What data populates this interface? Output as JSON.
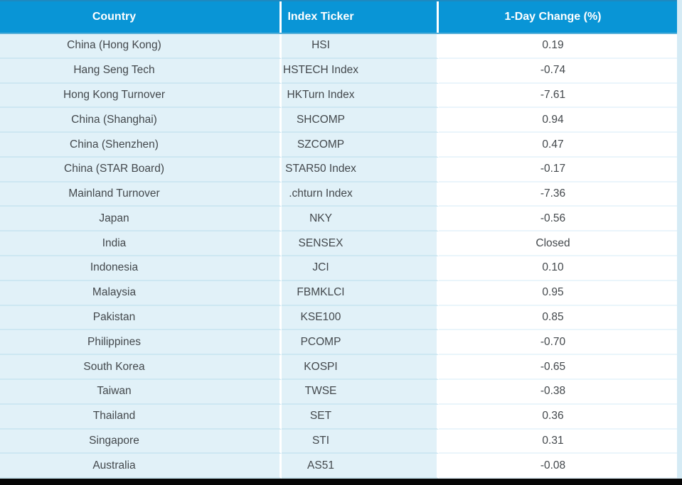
{
  "table": {
    "columns": [
      {
        "label": "Country"
      },
      {
        "label": "Index Ticker"
      },
      {
        "label": "1-Day Change (%)"
      }
    ],
    "rows": [
      {
        "country": "China (Hong Kong)",
        "ticker": "HSI",
        "change": "0.19"
      },
      {
        "country": "Hang Seng Tech",
        "ticker": "HSTECH Index",
        "change": "-0.74"
      },
      {
        "country": "Hong Kong Turnover",
        "ticker": "HKTurn Index",
        "change": "-7.61"
      },
      {
        "country": "China (Shanghai)",
        "ticker": "SHCOMP",
        "change": "0.94"
      },
      {
        "country": "China (Shenzhen)",
        "ticker": "SZCOMP",
        "change": "0.47"
      },
      {
        "country": "China (STAR Board)",
        "ticker": "STAR50 Index",
        "change": "-0.17"
      },
      {
        "country": "Mainland Turnover",
        "ticker": ".chturn Index",
        "change": "-7.36"
      },
      {
        "country": "Japan",
        "ticker": "NKY",
        "change": "-0.56"
      },
      {
        "country": "India",
        "ticker": "SENSEX",
        "change": "Closed"
      },
      {
        "country": "Indonesia",
        "ticker": "JCI",
        "change": "0.10"
      },
      {
        "country": "Malaysia",
        "ticker": "FBMKLCI",
        "change": "0.95"
      },
      {
        "country": "Pakistan",
        "ticker": "KSE100",
        "change": "0.85"
      },
      {
        "country": "Philippines",
        "ticker": "PCOMP",
        "change": "-0.70"
      },
      {
        "country": "South Korea",
        "ticker": "KOSPI",
        "change": "-0.65"
      },
      {
        "country": "Taiwan",
        "ticker": "TWSE",
        "change": "-0.38"
      },
      {
        "country": "Thailand",
        "ticker": "SET",
        "change": "0.36"
      },
      {
        "country": "Singapore",
        "ticker": "STI",
        "change": "0.31"
      },
      {
        "country": "Australia",
        "ticker": "AS51",
        "change": "-0.08"
      }
    ]
  },
  "colors": {
    "header_bg": "#0995d6",
    "header_text": "#ffffff",
    "row_bg": "#e1f1f8",
    "row_divider": "#cde7f2",
    "value_bg": "#ffffff",
    "value_divider": "#eaf5fb",
    "body_text": "#43484c",
    "right_strip": "#d5ebf5",
    "bottom_bar": "#060606"
  },
  "chart_data": {
    "type": "table",
    "title": "",
    "columns": [
      "Country",
      "Index Ticker",
      "1-Day Change (%)"
    ],
    "rows": [
      [
        "China (Hong Kong)",
        "HSI",
        0.19
      ],
      [
        "Hang Seng Tech",
        "HSTECH Index",
        -0.74
      ],
      [
        "Hong Kong Turnover",
        "HKTurn Index",
        -7.61
      ],
      [
        "China (Shanghai)",
        "SHCOMP",
        0.94
      ],
      [
        "China (Shenzhen)",
        "SZCOMP",
        0.47
      ],
      [
        "China (STAR Board)",
        "STAR50 Index",
        -0.17
      ],
      [
        "Mainland Turnover",
        ".chturn Index",
        -7.36
      ],
      [
        "Japan",
        "NKY",
        -0.56
      ],
      [
        "India",
        "SENSEX",
        "Closed"
      ],
      [
        "Indonesia",
        "JCI",
        0.1
      ],
      [
        "Malaysia",
        "FBMKLCI",
        0.95
      ],
      [
        "Pakistan",
        "KSE100",
        0.85
      ],
      [
        "Philippines",
        "PCOMP",
        -0.7
      ],
      [
        "South Korea",
        "KOSPI",
        -0.65
      ],
      [
        "Taiwan",
        "TWSE",
        -0.38
      ],
      [
        "Thailand",
        "SET",
        0.36
      ],
      [
        "Singapore",
        "STI",
        0.31
      ],
      [
        "Australia",
        "AS51",
        -0.08
      ]
    ]
  }
}
